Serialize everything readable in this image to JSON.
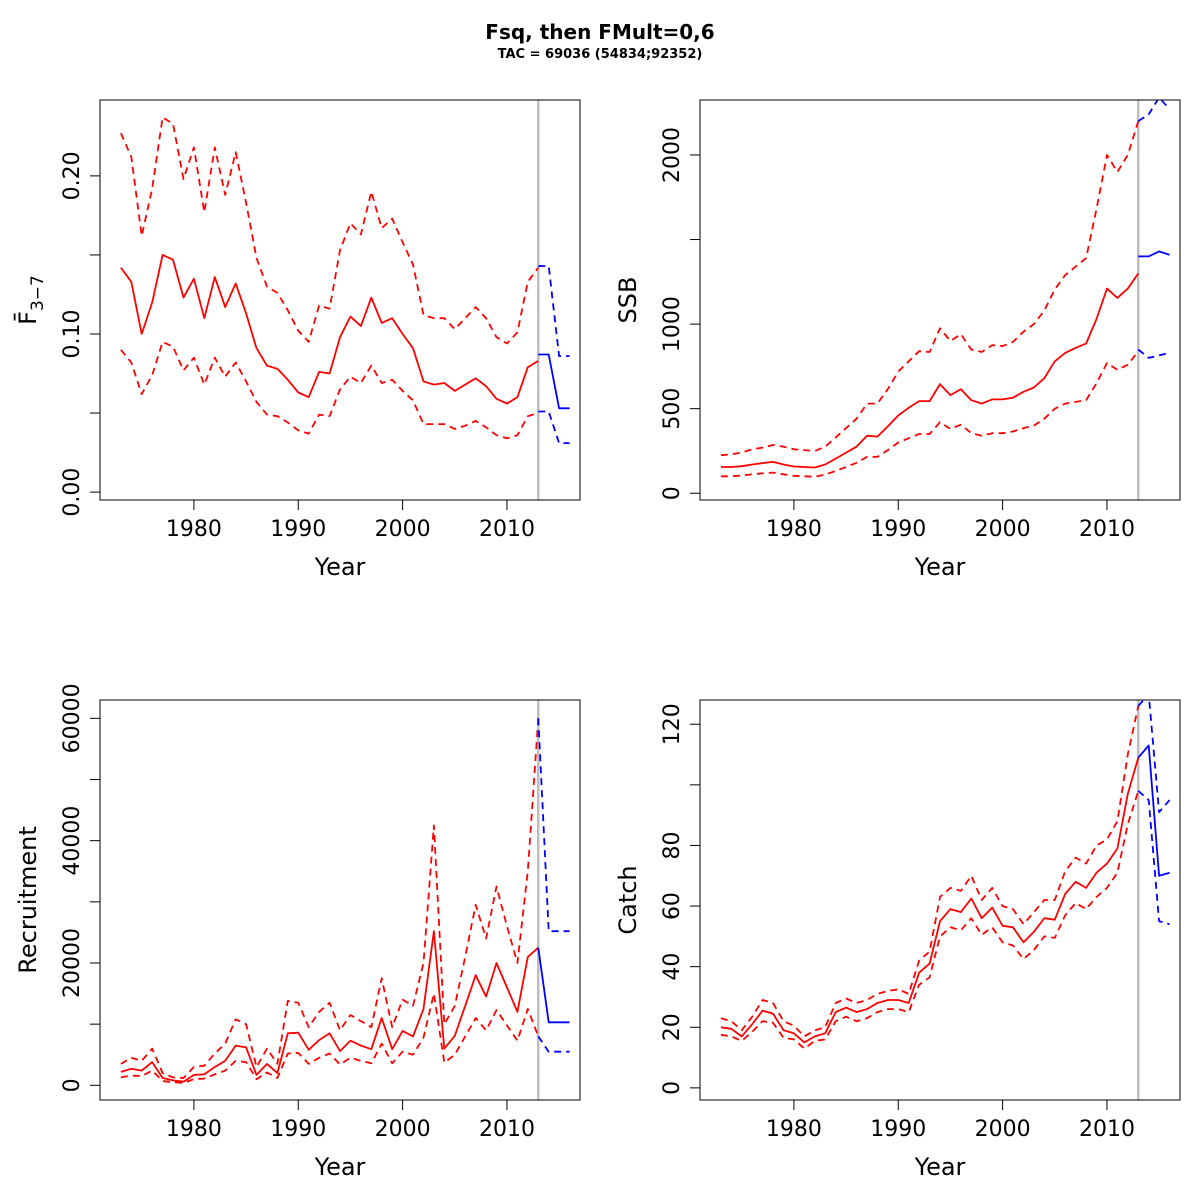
{
  "figure": {
    "title": "Fsq, then FMult=0,6",
    "subtitle": "TAC = 69036 (54834;92352)"
  },
  "colors": {
    "history": "#ff0000",
    "forecast": "#0000ff",
    "divider": "#bebebe"
  },
  "chart_data": [
    {
      "type": "line",
      "id": "fbar",
      "xlabel": "Year",
      "ylabel": "F̄",
      "ylabel_sub": "3−7",
      "xlim": [
        1971,
        2017
      ],
      "ylim": [
        -0.005,
        0.248
      ],
      "xticks": [
        1980,
        1990,
        2000,
        2010
      ],
      "xtick_labels": [
        "1980",
        "1990",
        "2000",
        "2010"
      ],
      "yticks": [
        0,
        0.05,
        0.1,
        0.15,
        0.2
      ],
      "ytick_labels": [
        "0.00",
        "",
        "0.10",
        "",
        "0.20"
      ],
      "divider_year": 2013,
      "history": {
        "x": [
          1973,
          1974,
          1975,
          1976,
          1977,
          1978,
          1979,
          1980,
          1981,
          1982,
          1983,
          1984,
          1985,
          1986,
          1987,
          1988,
          1989,
          1990,
          1991,
          1992,
          1993,
          1994,
          1995,
          1996,
          1997,
          1998,
          1999,
          2000,
          2001,
          2002,
          2003,
          2004,
          2005,
          2006,
          2007,
          2008,
          2009,
          2010,
          2011,
          2012,
          2013
        ],
        "mid": [
          0.142,
          0.133,
          0.1,
          0.12,
          0.15,
          0.147,
          0.123,
          0.135,
          0.11,
          0.136,
          0.117,
          0.132,
          0.113,
          0.091,
          0.08,
          0.078,
          0.071,
          0.063,
          0.06,
          0.076,
          0.075,
          0.098,
          0.111,
          0.105,
          0.123,
          0.107,
          0.11,
          0.1,
          0.091,
          0.07,
          0.068,
          0.069,
          0.064,
          0.068,
          0.072,
          0.067,
          0.059,
          0.056,
          0.06,
          0.079,
          0.083
        ],
        "upper": [
          0.227,
          0.212,
          0.162,
          0.192,
          0.237,
          0.233,
          0.198,
          0.218,
          0.177,
          0.218,
          0.188,
          0.215,
          0.183,
          0.148,
          0.13,
          0.126,
          0.115,
          0.102,
          0.095,
          0.118,
          0.116,
          0.153,
          0.17,
          0.163,
          0.19,
          0.167,
          0.173,
          0.158,
          0.144,
          0.112,
          0.11,
          0.11,
          0.103,
          0.11,
          0.117,
          0.11,
          0.098,
          0.094,
          0.101,
          0.133,
          0.142
        ],
        "lower": [
          0.09,
          0.082,
          0.062,
          0.074,
          0.095,
          0.092,
          0.077,
          0.085,
          0.068,
          0.085,
          0.073,
          0.082,
          0.07,
          0.057,
          0.049,
          0.048,
          0.044,
          0.039,
          0.037,
          0.049,
          0.048,
          0.065,
          0.073,
          0.069,
          0.08,
          0.069,
          0.071,
          0.064,
          0.058,
          0.043,
          0.043,
          0.043,
          0.04,
          0.042,
          0.045,
          0.041,
          0.036,
          0.034,
          0.036,
          0.048,
          0.05
        ]
      },
      "forecast": {
        "x": [
          2013,
          2014,
          2015,
          2016
        ],
        "mid": [
          0.087,
          0.087,
          0.053,
          0.053
        ],
        "upper": [
          0.143,
          0.143,
          0.086,
          0.086
        ],
        "lower": [
          0.051,
          0.051,
          0.031,
          0.031
        ]
      }
    },
    {
      "type": "line",
      "id": "ssb",
      "xlabel": "Year",
      "ylabel": "SSB",
      "xlim": [
        1971,
        2017
      ],
      "ylim": [
        -40,
        2325
      ],
      "xticks": [
        1980,
        1990,
        2000,
        2010
      ],
      "xtick_labels": [
        "1980",
        "1990",
        "2000",
        "2010"
      ],
      "yticks": [
        0,
        500,
        1000,
        1500,
        2000
      ],
      "ytick_labels": [
        "0",
        "500",
        "1000",
        "",
        "2000"
      ],
      "divider_year": 2013,
      "history": {
        "x": [
          1973,
          1974,
          1975,
          1976,
          1977,
          1978,
          1979,
          1980,
          1981,
          1982,
          1983,
          1984,
          1985,
          1986,
          1987,
          1988,
          1989,
          1990,
          1991,
          1992,
          1993,
          1994,
          1995,
          1996,
          1997,
          1998,
          1999,
          2000,
          2001,
          2002,
          2003,
          2004,
          2005,
          2006,
          2007,
          2008,
          2009,
          2010,
          2011,
          2012,
          2013
        ],
        "mid": [
          155,
          155,
          160,
          170,
          178,
          185,
          170,
          158,
          155,
          152,
          170,
          205,
          240,
          275,
          340,
          335,
          395,
          460,
          505,
          545,
          545,
          645,
          580,
          615,
          550,
          530,
          555,
          555,
          565,
          600,
          625,
          680,
          780,
          830,
          860,
          885,
          1030,
          1210,
          1155,
          1210,
          1300
        ],
        "upper": [
          225,
          230,
          240,
          260,
          270,
          285,
          275,
          260,
          255,
          250,
          275,
          330,
          385,
          440,
          530,
          530,
          615,
          720,
          780,
          840,
          835,
          975,
          900,
          940,
          850,
          835,
          875,
          870,
          895,
          955,
          1000,
          1080,
          1205,
          1290,
          1340,
          1390,
          1680,
          2000,
          1900,
          2000,
          2200
        ],
        "lower": [
          100,
          100,
          105,
          112,
          118,
          122,
          112,
          103,
          100,
          98,
          110,
          132,
          155,
          180,
          215,
          215,
          255,
          300,
          325,
          350,
          350,
          420,
          380,
          405,
          355,
          340,
          355,
          355,
          365,
          385,
          400,
          440,
          500,
          530,
          540,
          550,
          650,
          770,
          730,
          760,
          840
        ]
      },
      "forecast": {
        "x": [
          2013,
          2014,
          2015,
          2016
        ],
        "mid": [
          1400,
          1400,
          1430,
          1410
        ],
        "upper": [
          2200,
          2240,
          2340,
          2270
        ],
        "lower": [
          850,
          800,
          815,
          830
        ]
      }
    },
    {
      "type": "line",
      "id": "recruitment",
      "xlabel": "Year",
      "ylabel": "Recruitment",
      "xlim": [
        1971,
        2017
      ],
      "ylim": [
        -2400,
        63000
      ],
      "xticks": [
        1980,
        1990,
        2000,
        2010
      ],
      "xtick_labels": [
        "1980",
        "1990",
        "2000",
        "2010"
      ],
      "yticks": [
        0,
        10000,
        20000,
        30000,
        40000,
        50000,
        60000
      ],
      "ytick_labels": [
        "0",
        "",
        "20000",
        "",
        "40000",
        "",
        "60000"
      ],
      "divider_year": 2013,
      "history": {
        "x": [
          1973,
          1974,
          1975,
          1976,
          1977,
          1978,
          1979,
          1980,
          1981,
          1982,
          1983,
          1984,
          1985,
          1986,
          1987,
          1988,
          1989,
          1990,
          1991,
          1992,
          1993,
          1994,
          1995,
          1996,
          1997,
          1998,
          1999,
          2000,
          2001,
          2002,
          2003,
          2004,
          2005,
          2006,
          2007,
          2008,
          2009,
          2010,
          2011,
          2012,
          2013
        ],
        "mid": [
          2200,
          2700,
          2400,
          3800,
          1200,
          800,
          600,
          1700,
          1800,
          3000,
          4000,
          6500,
          6200,
          1700,
          3500,
          2000,
          8500,
          8600,
          5800,
          7400,
          8500,
          5600,
          7300,
          6500,
          5900,
          11000,
          5900,
          8900,
          8000,
          12500,
          25200,
          6000,
          8100,
          13000,
          18000,
          14500,
          20000,
          16000,
          12000,
          21000,
          22500
        ],
        "upper": [
          3500,
          4500,
          4000,
          6000,
          2000,
          1300,
          1200,
          3000,
          3200,
          5200,
          6800,
          10800,
          10000,
          3000,
          6000,
          3500,
          13800,
          13500,
          9500,
          12000,
          13500,
          9000,
          11500,
          10500,
          9500,
          17500,
          9500,
          14000,
          13000,
          20000,
          42500,
          10000,
          13000,
          21000,
          29500,
          24000,
          32500,
          26000,
          20000,
          35000,
          60000
        ],
        "lower": [
          1300,
          1600,
          1500,
          2400,
          700,
          500,
          400,
          1000,
          1100,
          1800,
          2400,
          4000,
          3800,
          1000,
          2100,
          1200,
          5200,
          5300,
          3500,
          4500,
          5200,
          3400,
          4500,
          4000,
          3600,
          6800,
          3600,
          5500,
          5000,
          7800,
          15000,
          3700,
          5000,
          8000,
          11000,
          9000,
          12300,
          9800,
          7300,
          12500,
          8000
        ]
      },
      "forecast": {
        "x": [
          2013,
          2014,
          2015,
          2016
        ],
        "mid": [
          22500,
          10300,
          10300,
          10300
        ],
        "upper": [
          60000,
          25200,
          25200,
          25200
        ],
        "lower": [
          8000,
          5500,
          5500,
          5500
        ]
      }
    },
    {
      "type": "line",
      "id": "catch",
      "xlabel": "Year",
      "ylabel": "Catch",
      "xlim": [
        1971,
        2017
      ],
      "ylim": [
        -4,
        128
      ],
      "xticks": [
        1980,
        1990,
        2000,
        2010
      ],
      "xtick_labels": [
        "1980",
        "1990",
        "2000",
        "2010"
      ],
      "yticks": [
        0,
        20,
        40,
        60,
        80,
        100,
        120
      ],
      "ytick_labels": [
        "0",
        "20",
        "40",
        "60",
        "80",
        "",
        "120"
      ],
      "divider_year": 2013,
      "history": {
        "x": [
          1973,
          1974,
          1975,
          1976,
          1977,
          1978,
          1979,
          1980,
          1981,
          1982,
          1983,
          1984,
          1985,
          1986,
          1987,
          1988,
          1989,
          1990,
          1991,
          1992,
          1993,
          1994,
          1995,
          1996,
          1997,
          1998,
          1999,
          2000,
          2001,
          2002,
          2003,
          2004,
          2005,
          2006,
          2007,
          2008,
          2009,
          2010,
          2011,
          2012,
          2013
        ],
        "mid": [
          20,
          19.5,
          17,
          21,
          25.5,
          24.5,
          19,
          18,
          15,
          17,
          18,
          25,
          26.5,
          25,
          26,
          28,
          29,
          29,
          28,
          38,
          41,
          55,
          59,
          58,
          62.5,
          56,
          59.5,
          53.5,
          53,
          48,
          51.5,
          56,
          55.5,
          64,
          68,
          66,
          71,
          74,
          79,
          97,
          109
        ],
        "upper": [
          23,
          22,
          19,
          23.5,
          29,
          28,
          22,
          20.5,
          17,
          19,
          20,
          28,
          29.5,
          28,
          29,
          31,
          32,
          32.5,
          31,
          42,
          45,
          63,
          66,
          65,
          70,
          62,
          66,
          60,
          59,
          54,
          58,
          62,
          62,
          71.5,
          76,
          74,
          80,
          82,
          88,
          110,
          126
        ],
        "lower": [
          17.5,
          17,
          15.5,
          18.5,
          22,
          21.5,
          16.5,
          16,
          13,
          15.5,
          16,
          22,
          23.5,
          22,
          23,
          25,
          26,
          26,
          25,
          34,
          36.5,
          50,
          53,
          52,
          56,
          50.5,
          53,
          48,
          47,
          42.5,
          45.5,
          50,
          49.5,
          57,
          61,
          59,
          63,
          66,
          71,
          87,
          98
        ]
      },
      "forecast": {
        "x": [
          2013,
          2014,
          2015,
          2016
        ],
        "mid": [
          109,
          113,
          70,
          71
        ],
        "upper": [
          126,
          130,
          91,
          95
        ],
        "lower": [
          98,
          95,
          55,
          54
        ]
      }
    }
  ]
}
